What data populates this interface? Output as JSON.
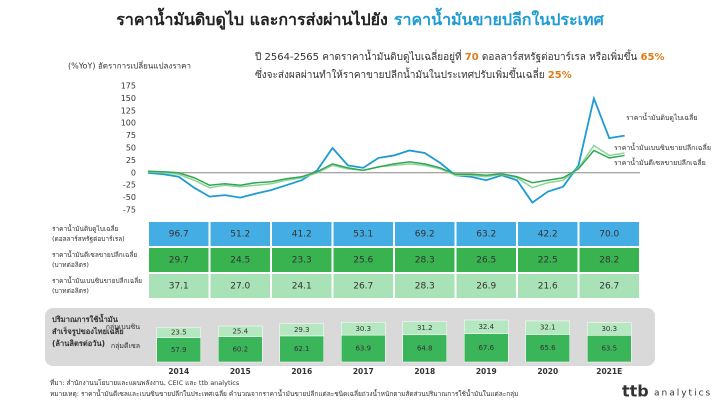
{
  "header": {
    "title": "ราคาน้ำมันดิบดูไบ และการส่งผ่านไปยัง",
    "title_highlight": "ราคาน้ำมันขายปลีกในประเทศ"
  },
  "annotation": {
    "line1": [
      "ปี 2564-2565 คาดราคาน้ำมันดิบดูไบเฉลี่ยอยู่ที่ ",
      "70",
      " ดอลลาร์สหรัฐต่อบาร์เรล หรือเพิ่มขึ้น ",
      "65%"
    ],
    "line2": [
      "ซึ่งจะส่งผลผ่านทำให้ราคาขายปลีกน้ำมันในประเทศปรับเพิ่มขึ้นเฉลี่ย ",
      "25%"
    ]
  },
  "chart_data": {
    "type": "line",
    "y_label": "(%YoY) อัตราการเปลี่ยนแปลงราคา",
    "x": [
      2014,
      2014.25,
      2014.5,
      2014.75,
      2015,
      2015.25,
      2015.5,
      2015.75,
      2016,
      2016.25,
      2016.5,
      2016.75,
      2017,
      2017.25,
      2017.5,
      2017.75,
      2018,
      2018.25,
      2018.5,
      2018.75,
      2019,
      2019.25,
      2019.5,
      2019.75,
      2020,
      2020.25,
      2020.5,
      2020.75,
      2021,
      2021.25,
      2021.5,
      2021.75
    ],
    "xlim": [
      2014,
      2022
    ],
    "ylim": [
      -75,
      175
    ],
    "yticks": [
      -75,
      -50,
      -25,
      0,
      25,
      50,
      75,
      100,
      125,
      150,
      175
    ],
    "series": [
      {
        "name": "ราคาน้ำมันดิบดูไบเฉลี่ย",
        "color": "#1f9bd3",
        "values": [
          0,
          -3,
          -8,
          -30,
          -48,
          -45,
          -50,
          -42,
          -35,
          -25,
          -15,
          5,
          50,
          15,
          10,
          30,
          35,
          45,
          40,
          20,
          -5,
          -8,
          -15,
          -5,
          -15,
          -60,
          -38,
          -28,
          15,
          150,
          70,
          75
        ]
      },
      {
        "name": "ราคาน้ำมันเบนซินขายปลีกเฉลี่ย",
        "color": "#8fd49c",
        "values": [
          2,
          0,
          -3,
          -15,
          -30,
          -25,
          -28,
          -25,
          -22,
          -15,
          -10,
          0,
          15,
          8,
          5,
          12,
          15,
          18,
          15,
          8,
          -5,
          -5,
          -8,
          -3,
          -10,
          -30,
          -20,
          -15,
          10,
          55,
          35,
          40
        ]
      },
      {
        "name": "ราคาน้ำมันดีเซลขายปลีกเฉลี่ย",
        "color": "#34a853",
        "values": [
          3,
          2,
          0,
          -10,
          -25,
          -22,
          -25,
          -20,
          -18,
          -12,
          -8,
          2,
          18,
          10,
          5,
          12,
          18,
          22,
          18,
          10,
          -3,
          -3,
          -5,
          -2,
          -8,
          -20,
          -15,
          -10,
          8,
          45,
          30,
          35
        ]
      }
    ]
  },
  "table": {
    "rows": [
      {
        "label": "ราคาน้ำมันดิบดูไบเฉลี่ย",
        "unit": "(ดอลลาร์สหรัฐต่อบาร์เรล)",
        "color": "#44aee4",
        "values": [
          "96.7",
          "51.2",
          "41.2",
          "53.1",
          "69.2",
          "63.2",
          "42.2",
          "70.0"
        ]
      },
      {
        "label": "ราคาน้ำมันดีเซลขายปลีกเฉลี่ย",
        "unit": "(บาทต่อลิตร)",
        "color": "#38b34f",
        "values": [
          "29.7",
          "24.5",
          "23.3",
          "25.6",
          "28.3",
          "26.5",
          "22.5",
          "28.2"
        ]
      },
      {
        "label": "ราคาน้ำมันเบนซินขายปลีกเฉลี่ย",
        "unit": "(บาทต่อลิตร)",
        "color": "#a9e2b7",
        "values": [
          "37.1",
          "27.0",
          "24.1",
          "26.7",
          "28.3",
          "26.9",
          "21.6",
          "26.7"
        ]
      }
    ]
  },
  "consumption": {
    "title": [
      "ปริมาณการใช้น้ำมัน",
      "สำเร็จรูปของไทยเฉลี่ย",
      "(ล้านลิตรต่อวัน)"
    ],
    "years": [
      "2014",
      "2015",
      "2016",
      "2017",
      "2018",
      "2019",
      "2020",
      "2021E"
    ],
    "series": [
      {
        "name": "กลุ่มดีเซล",
        "color": "#3bb55a",
        "values": [
          57.9,
          60.2,
          62.1,
          63.9,
          64.8,
          67.6,
          65.6,
          63.5
        ]
      },
      {
        "name": "กลุ่มเบนซิน",
        "color": "#b5e7c0",
        "values": [
          23.5,
          25.4,
          29.3,
          30.3,
          31.2,
          32.4,
          32.1,
          30.3
        ]
      }
    ]
  },
  "footer": {
    "source": "ที่มา: สำนักงานนโยบายและแผนพลังงาน, CEIC และ ttb analytics",
    "note": "หมายเหตุ: ราคาน้ำมันดีเซลและเบนซินขายปลีกในประเทศเฉลี่ย คำนวณจากราคาน้ำมันขายปลีกแต่ละชนิดเฉลี่ยถ่วงน้ำหนักตามสัดส่วนปริมาณการใช้น้ำมันในแต่ละกลุ่ม",
    "logo": "ttb",
    "logo_text": "analytics"
  }
}
